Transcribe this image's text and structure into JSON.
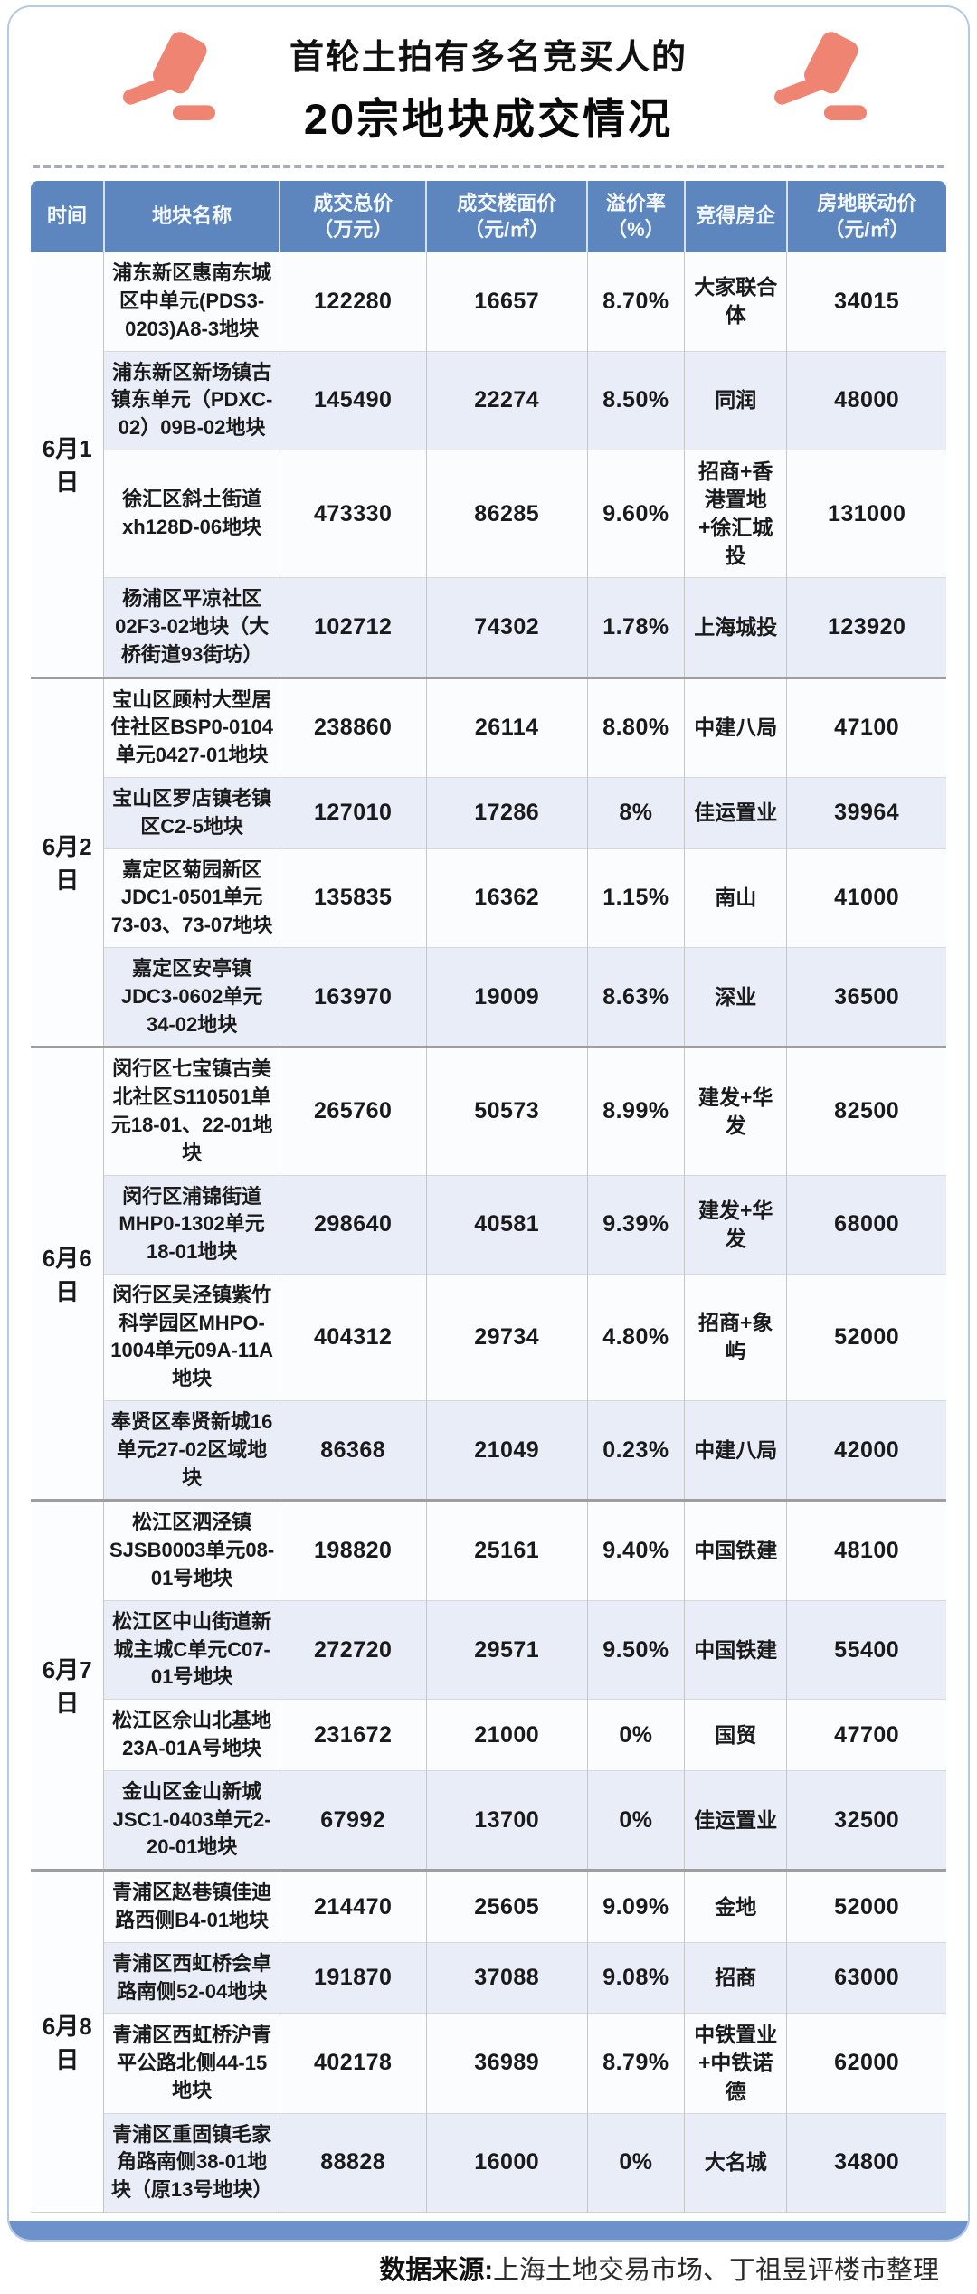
{
  "title": {
    "line1": "首轮土拍有多名竞买人的",
    "line2": "20宗地块成交情况"
  },
  "icons": {
    "left": "gavel",
    "right": "gavel"
  },
  "table": {
    "headers": [
      {
        "label": "时间",
        "unit": ""
      },
      {
        "label": "地块名称",
        "unit": ""
      },
      {
        "label": "成交总价",
        "unit": "（万元）"
      },
      {
        "label": "成交楼面价",
        "unit": "（元/㎡）"
      },
      {
        "label": "溢价率",
        "unit": "（%）"
      },
      {
        "label": "竞得房企",
        "unit": ""
      },
      {
        "label": "房地联动价",
        "unit": "（元/㎡）"
      }
    ],
    "groups": [
      {
        "date": "6月1日",
        "rows": [
          {
            "name": "浦东新区惠南东城区中单元(PDS3-0203)A8-3地块",
            "total": "122280",
            "floor": "16657",
            "premium": "8.70%",
            "developer": "大家联合体",
            "linkage": "34015"
          },
          {
            "name": "浦东新区新场镇古镇东单元（PDXC-02）09B-02地块",
            "total": "145490",
            "floor": "22274",
            "premium": "8.50%",
            "developer": "同润",
            "linkage": "48000"
          },
          {
            "name": "徐汇区斜土街道xh128D-06地块",
            "total": "473330",
            "floor": "86285",
            "premium": "9.60%",
            "developer": "招商+香港置地+徐汇城投",
            "linkage": "131000"
          },
          {
            "name": "杨浦区平凉社区02F3-02地块（大桥街道93街坊）",
            "total": "102712",
            "floor": "74302",
            "premium": "1.78%",
            "developer": "上海城投",
            "linkage": "123920"
          }
        ]
      },
      {
        "date": "6月2日",
        "rows": [
          {
            "name": "宝山区顾村大型居住社区BSP0-0104单元0427-01地块",
            "total": "238860",
            "floor": "26114",
            "premium": "8.80%",
            "developer": "中建八局",
            "linkage": "47100"
          },
          {
            "name": "宝山区罗店镇老镇区C2-5地块",
            "total": "127010",
            "floor": "17286",
            "premium": "8%",
            "developer": "佳运置业",
            "linkage": "39964"
          },
          {
            "name": "嘉定区菊园新区JDC1-0501单元73-03、73-07地块",
            "total": "135835",
            "floor": "16362",
            "premium": "1.15%",
            "developer": "南山",
            "linkage": "41000"
          },
          {
            "name": "嘉定区安亭镇JDC3-0602单元34-02地块",
            "total": "163970",
            "floor": "19009",
            "premium": "8.63%",
            "developer": "深业",
            "linkage": "36500"
          }
        ]
      },
      {
        "date": "6月6日",
        "rows": [
          {
            "name": "闵行区七宝镇古美北社区S110501单元18-01、22-01地块",
            "total": "265760",
            "floor": "50573",
            "premium": "8.99%",
            "developer": "建发+华发",
            "linkage": "82500"
          },
          {
            "name": "闵行区浦锦街道MHP0-1302单元18-01地块",
            "total": "298640",
            "floor": "40581",
            "premium": "9.39%",
            "developer": "建发+华发",
            "linkage": "68000"
          },
          {
            "name": "闵行区吴泾镇紫竹科学园区MHPO-1004单元09A-11A地块",
            "total": "404312",
            "floor": "29734",
            "premium": "4.80%",
            "developer": "招商+象屿",
            "linkage": "52000"
          },
          {
            "name": "奉贤区奉贤新城16单元27-02区域地块",
            "total": "86368",
            "floor": "21049",
            "premium": "0.23%",
            "developer": "中建八局",
            "linkage": "42000"
          }
        ]
      },
      {
        "date": "6月7日",
        "rows": [
          {
            "name": "松江区泗泾镇SJSB0003单元08-01号地块",
            "total": "198820",
            "floor": "25161",
            "premium": "9.40%",
            "developer": "中国铁建",
            "linkage": "48100"
          },
          {
            "name": "松江区中山街道新城主城C单元C07-01号地块",
            "total": "272720",
            "floor": "29571",
            "premium": "9.50%",
            "developer": "中国铁建",
            "linkage": "55400"
          },
          {
            "name": "松江区佘山北基地23A-01A号地块",
            "total": "231672",
            "floor": "21000",
            "premium": "0%",
            "developer": "国贸",
            "linkage": "47700"
          },
          {
            "name": "金山区金山新城JSC1-0403单元2-20-01地块",
            "total": "67992",
            "floor": "13700",
            "premium": "0%",
            "developer": "佳运置业",
            "linkage": "32500"
          }
        ]
      },
      {
        "date": "6月8日",
        "rows": [
          {
            "name": "青浦区赵巷镇佳迪路西侧B4-01地块",
            "total": "214470",
            "floor": "25605",
            "premium": "9.09%",
            "developer": "金地",
            "linkage": "52000"
          },
          {
            "name": "青浦区西虹桥会卓路南侧52-04地块",
            "total": "191870",
            "floor": "37088",
            "premium": "9.08%",
            "developer": "招商",
            "linkage": "63000"
          },
          {
            "name": "青浦区西虹桥沪青平公路北侧44-15地块",
            "total": "402178",
            "floor": "36989",
            "premium": "8.79%",
            "developer": "中铁置业+中铁诺德",
            "linkage": "62000"
          },
          {
            "name": "青浦区重固镇毛家角路南侧38-01地块（原13号地块）",
            "total": "88828",
            "floor": "16000",
            "premium": "0%",
            "developer": "大名城",
            "linkage": "34800"
          }
        ]
      }
    ]
  },
  "footer": {
    "label": "数据来源:",
    "text": "上海土地交易市场、丁祖昱评楼市整理"
  },
  "colors": {
    "header_bg": "#5E86BE",
    "row_light": "#FBFCFE",
    "row_alt": "#E8EDF8",
    "group_divider": "#9E9E9E",
    "bottom_bar": "#6C91CB",
    "card_border": "#B3CBE0",
    "gavel": "#EE8471",
    "text": "#1A1A1A"
  }
}
